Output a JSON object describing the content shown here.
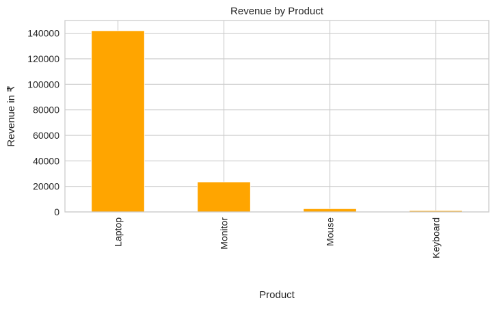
{
  "chart_data": {
    "type": "bar",
    "title": "Revenue by Product",
    "xlabel": "Product",
    "ylabel": "Revenue in ₹",
    "categories": [
      "Laptop",
      "Monitor",
      "Mouse",
      "Keyboard"
    ],
    "values": [
      142000,
      23500,
      2500,
      1000
    ],
    "ylim": [
      0,
      150000
    ],
    "yticks": [
      0,
      20000,
      40000,
      60000,
      80000,
      100000,
      120000,
      140000
    ],
    "grid": true,
    "bar_color": "#FFA500",
    "grid_color": "#CCCCCC"
  }
}
